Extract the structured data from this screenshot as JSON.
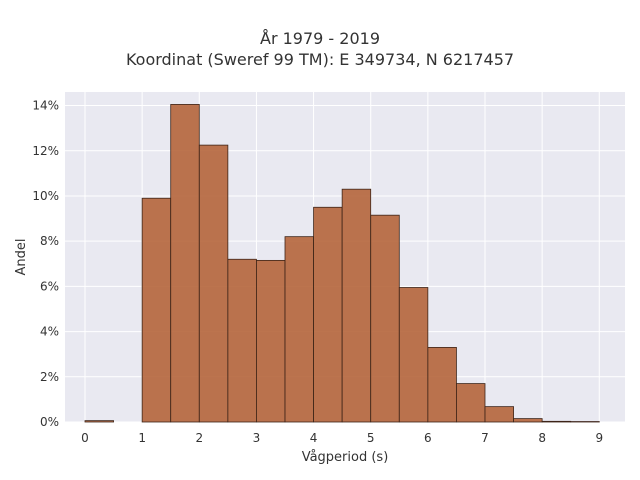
{
  "chart_data": {
    "type": "bar",
    "title_lines": [
      "År 1979 - 2019",
      "Koordinat (Sweref 99 TM): E 349734, N 6217457"
    ],
    "xlabel": "Vågperiod (s)",
    "ylabel": "Andel",
    "xlim": [
      -0.35,
      9.45
    ],
    "ylim": [
      0,
      14.6
    ],
    "x_ticks": [
      0,
      1,
      2,
      3,
      4,
      5,
      6,
      7,
      8,
      9
    ],
    "x_tick_labels": [
      "0",
      "1",
      "2",
      "3",
      "4",
      "5",
      "6",
      "7",
      "8",
      "9"
    ],
    "y_ticks": [
      0,
      2,
      4,
      6,
      8,
      10,
      12,
      14
    ],
    "y_tick_labels": [
      "0%",
      "2%",
      "4%",
      "6%",
      "8%",
      "10%",
      "12%",
      "14%"
    ],
    "grid": true,
    "bin_width": 0.5,
    "bins": [
      {
        "x0": 0.0,
        "x1": 0.5,
        "value": 0.06
      },
      {
        "x0": 0.5,
        "x1": 1.0,
        "value": 0.0
      },
      {
        "x0": 1.0,
        "x1": 1.5,
        "value": 9.9
      },
      {
        "x0": 1.5,
        "x1": 2.0,
        "value": 14.05
      },
      {
        "x0": 2.0,
        "x1": 2.5,
        "value": 12.25
      },
      {
        "x0": 2.5,
        "x1": 3.0,
        "value": 7.2
      },
      {
        "x0": 3.0,
        "x1": 3.5,
        "value": 7.15
      },
      {
        "x0": 3.5,
        "x1": 4.0,
        "value": 8.2
      },
      {
        "x0": 4.0,
        "x1": 4.5,
        "value": 9.5
      },
      {
        "x0": 4.5,
        "x1": 5.0,
        "value": 10.3
      },
      {
        "x0": 5.0,
        "x1": 5.5,
        "value": 9.15
      },
      {
        "x0": 5.5,
        "x1": 6.0,
        "value": 5.95
      },
      {
        "x0": 6.0,
        "x1": 6.5,
        "value": 3.3
      },
      {
        "x0": 6.5,
        "x1": 7.0,
        "value": 1.7
      },
      {
        "x0": 7.0,
        "x1": 7.5,
        "value": 0.68
      },
      {
        "x0": 7.5,
        "x1": 8.0,
        "value": 0.15
      },
      {
        "x0": 8.0,
        "x1": 8.5,
        "value": 0.03
      },
      {
        "x0": 8.5,
        "x1": 9.0,
        "value": 0.02
      }
    ],
    "colors": {
      "bar_fill": "#b5653b",
      "bar_stroke": "#3d2418",
      "plot_background": "#e9e9f1",
      "grid": "#ffffff",
      "text": "#333333"
    }
  }
}
